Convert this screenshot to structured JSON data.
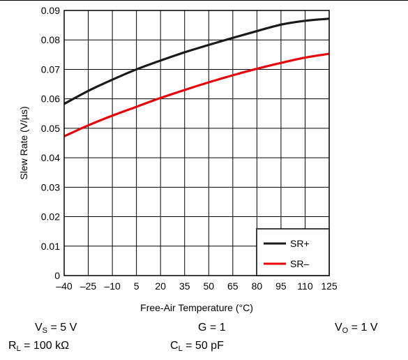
{
  "chart_data": {
    "type": "line",
    "xlabel": "Free-Air Temperature (°C)",
    "ylabel": "Slew Rate (V/µs)",
    "xlim": [
      -40,
      125
    ],
    "ylim": [
      0,
      0.09
    ],
    "x_ticks": [
      -40,
      -25,
      -10,
      5,
      20,
      35,
      50,
      65,
      80,
      95,
      110,
      125
    ],
    "x_tick_labels": [
      "–40",
      "–25",
      "–10",
      "5",
      "20",
      "35",
      "50",
      "65",
      "80",
      "95",
      "110",
      "125"
    ],
    "y_ticks": [
      0,
      0.01,
      0.02,
      0.03,
      0.04,
      0.05,
      0.06,
      0.07,
      0.08,
      0.09
    ],
    "y_tick_labels": [
      "0",
      "0.01",
      "0.02",
      "0.03",
      "0.04",
      "0.05",
      "0.06",
      "0.07",
      "0.08",
      "0.09"
    ],
    "grid": true,
    "legend_position": "bottom-right",
    "x": [
      -40,
      -25,
      -10,
      5,
      20,
      35,
      50,
      65,
      80,
      95,
      110,
      125
    ],
    "series": [
      {
        "name": "SR+",
        "color": "#1a1a1a",
        "values": [
          0.0583,
          0.0627,
          0.0665,
          0.07,
          0.073,
          0.0758,
          0.0783,
          0.0807,
          0.083,
          0.0852,
          0.0865,
          0.0872
        ]
      },
      {
        "name": "SR–",
        "color": "#e8000b",
        "values": [
          0.0473,
          0.051,
          0.0543,
          0.0573,
          0.0603,
          0.063,
          0.0656,
          0.068,
          0.0702,
          0.0722,
          0.074,
          0.0753
        ]
      }
    ]
  },
  "conditions": {
    "vs": {
      "sym": "V",
      "sub": "S",
      "val": " = 5 V"
    },
    "g": {
      "sym": "G",
      "sub": "",
      "val": " = 1"
    },
    "vo": {
      "sym": "V",
      "sub": "O",
      "val": " = 1 V"
    },
    "rl": {
      "sym": "R",
      "sub": "L",
      "val": " = 100 kΩ"
    },
    "cl": {
      "sym": "C",
      "sub": "L",
      "val": " = 50 pF"
    }
  }
}
